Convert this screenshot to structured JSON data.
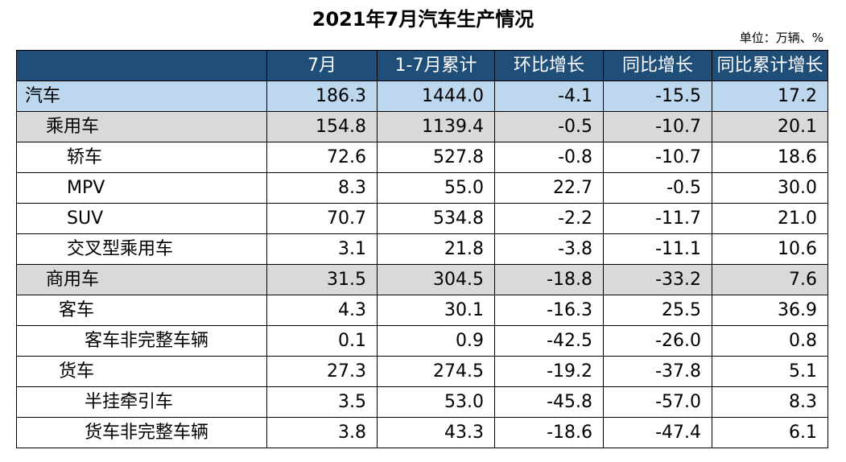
{
  "title": "2021年7月汽车生产情况",
  "unit": "单位：万辆、%",
  "table": {
    "header": {
      "label": "",
      "monthly": "7月",
      "cumulative": "1-7月累计",
      "mom": "环比增长",
      "yoy": "同比增长",
      "cum_yoy": "同比累计增长"
    },
    "rows": [
      {
        "name": "汽车",
        "monthly": "186.3",
        "cumulative": "1444.0",
        "mom": "-4.1",
        "yoy": "-15.5",
        "cum_yoy": "17.2"
      },
      {
        "name": "乘用车",
        "monthly": "154.8",
        "cumulative": "1139.4",
        "mom": "-0.5",
        "yoy": "-10.7",
        "cum_yoy": "20.1"
      },
      {
        "name": "轿车",
        "monthly": "72.6",
        "cumulative": "527.8",
        "mom": "-0.8",
        "yoy": "-10.7",
        "cum_yoy": "18.6"
      },
      {
        "name": "MPV",
        "monthly": "8.3",
        "cumulative": "55.0",
        "mom": "22.7",
        "yoy": "-0.5",
        "cum_yoy": "30.0"
      },
      {
        "name": "SUV",
        "monthly": "70.7",
        "cumulative": "534.8",
        "mom": "-2.2",
        "yoy": "-11.7",
        "cum_yoy": "21.0"
      },
      {
        "name": "交叉型乘用车",
        "monthly": "3.1",
        "cumulative": "21.8",
        "mom": "-3.8",
        "yoy": "-11.1",
        "cum_yoy": "10.6"
      },
      {
        "name": "商用车",
        "monthly": "31.5",
        "cumulative": "304.5",
        "mom": "-18.8",
        "yoy": "-33.2",
        "cum_yoy": "7.6"
      },
      {
        "name": "客车",
        "monthly": "4.3",
        "cumulative": "30.1",
        "mom": "-16.3",
        "yoy": "25.5",
        "cum_yoy": "36.9"
      },
      {
        "name": "客车非完整车辆",
        "monthly": "0.1",
        "cumulative": "0.9",
        "mom": "-42.5",
        "yoy": "-26.0",
        "cum_yoy": "0.8"
      },
      {
        "name": "货车",
        "monthly": "27.3",
        "cumulative": "274.5",
        "mom": "-19.2",
        "yoy": "-37.8",
        "cum_yoy": "5.1"
      },
      {
        "name": "半挂牵引车",
        "monthly": "3.5",
        "cumulative": "53.0",
        "mom": "-45.8",
        "yoy": "-57.0",
        "cum_yoy": "8.3"
      },
      {
        "name": "货车非完整车辆",
        "monthly": "3.8",
        "cumulative": "43.3",
        "mom": "-18.6",
        "yoy": "-47.4",
        "cum_yoy": "6.1"
      }
    ]
  },
  "chart_data": {
    "type": "table",
    "title": "2021年7月汽车生产情况",
    "unit": "单位：万辆、%",
    "columns": [
      "7月",
      "1-7月累计",
      "环比增长",
      "同比增长",
      "同比累计增长"
    ],
    "rows": [
      "汽车",
      "乘用车",
      "轿车",
      "MPV",
      "SUV",
      "交叉型乘用车",
      "商用车",
      "客车",
      "客车非完整车辆",
      "货车",
      "半挂牵引车",
      "货车非完整车辆"
    ],
    "values": [
      [
        186.3,
        1444.0,
        -4.1,
        -15.5,
        17.2
      ],
      [
        154.8,
        1139.4,
        -0.5,
        -10.7,
        20.1
      ],
      [
        72.6,
        527.8,
        -0.8,
        -10.7,
        18.6
      ],
      [
        8.3,
        55.0,
        22.7,
        -0.5,
        30.0
      ],
      [
        70.7,
        534.8,
        -2.2,
        -11.7,
        21.0
      ],
      [
        3.1,
        21.8,
        -3.8,
        -11.1,
        10.6
      ],
      [
        31.5,
        304.5,
        -18.8,
        -33.2,
        7.6
      ],
      [
        4.3,
        30.1,
        -16.3,
        25.5,
        36.9
      ],
      [
        0.1,
        0.9,
        -42.5,
        -26.0,
        0.8
      ],
      [
        27.3,
        274.5,
        -19.2,
        -37.8,
        5.1
      ],
      [
        3.5,
        53.0,
        -45.8,
        -57.0,
        8.3
      ],
      [
        3.8,
        43.3,
        -18.6,
        -47.4,
        6.1
      ]
    ]
  },
  "colors": {
    "header_bg": "#1f4e79",
    "total_row_bg": "#bdd7ee",
    "category_row_bg": "#d9d9d9"
  }
}
